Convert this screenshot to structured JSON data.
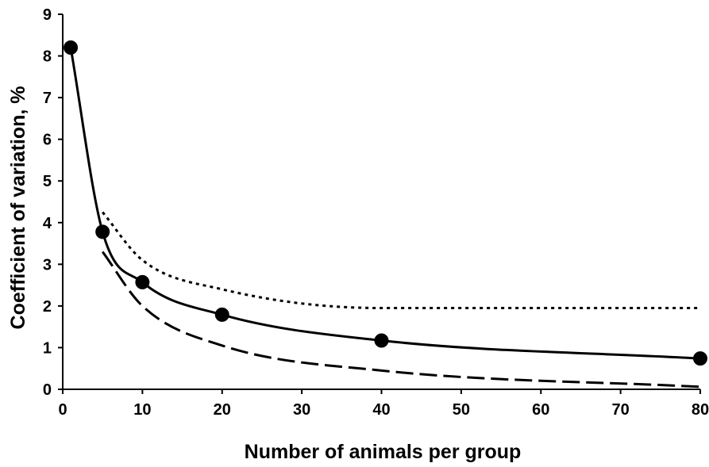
{
  "chart_data": {
    "type": "line",
    "title": "",
    "xlabel": "Number of animals per group",
    "ylabel": "Coefficient of variation, %",
    "xlim": [
      0,
      80
    ],
    "ylim": [
      0,
      9
    ],
    "x_ticks": [
      "0",
      "10",
      "20",
      "30",
      "40",
      "50",
      "60",
      "70",
      "80"
    ],
    "y_ticks": [
      "0",
      "1",
      "2",
      "3",
      "4",
      "5",
      "6",
      "7",
      "8",
      "9"
    ],
    "grid": false,
    "legend": "none",
    "series": [
      {
        "style": "solid-with-markers",
        "color": "#000000",
        "x": [
          1,
          5,
          10,
          20,
          40,
          80
        ],
        "y": [
          8.2,
          3.78,
          2.57,
          1.79,
          1.17,
          0.74
        ]
      },
      {
        "style": "dotted",
        "color": "#000000",
        "x": [
          5,
          10,
          20,
          40,
          80
        ],
        "y": [
          4.25,
          3.1,
          2.4,
          1.95,
          1.95
        ]
      },
      {
        "style": "dashed",
        "color": "#000000",
        "x": [
          5,
          10,
          20,
          40,
          80
        ],
        "y": [
          3.3,
          2.0,
          1.05,
          0.45,
          0.06
        ]
      }
    ]
  }
}
